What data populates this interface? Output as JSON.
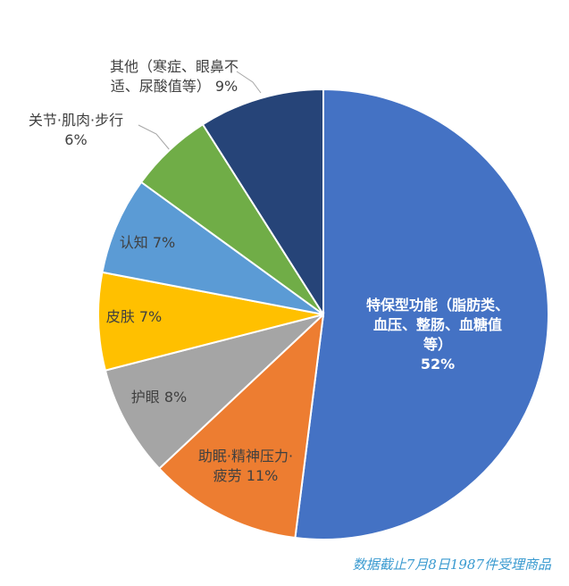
{
  "chart_data": {
    "type": "pie",
    "categories": [
      "特保型功能（脂肪类、血压、整肠、血糖值等）",
      "助眠·精神压力·疲劳",
      "护眼",
      "皮肤",
      "认知",
      "关节·肌肉·步行",
      "其他（寒症、眼鼻不适、尿酸值等）"
    ],
    "values": [
      52,
      11,
      8,
      7,
      7,
      6,
      9
    ],
    "value_labels": [
      "52%",
      "11%",
      "8%",
      "7%",
      "7%",
      "6%",
      "9%"
    ],
    "colors": [
      "#4472c4",
      "#ed7d31",
      "#a5a5a5",
      "#ffc000",
      "#5b9bd5",
      "#70ad47",
      "#264478"
    ],
    "source": "数据截止7月8日1987件受理商品"
  }
}
